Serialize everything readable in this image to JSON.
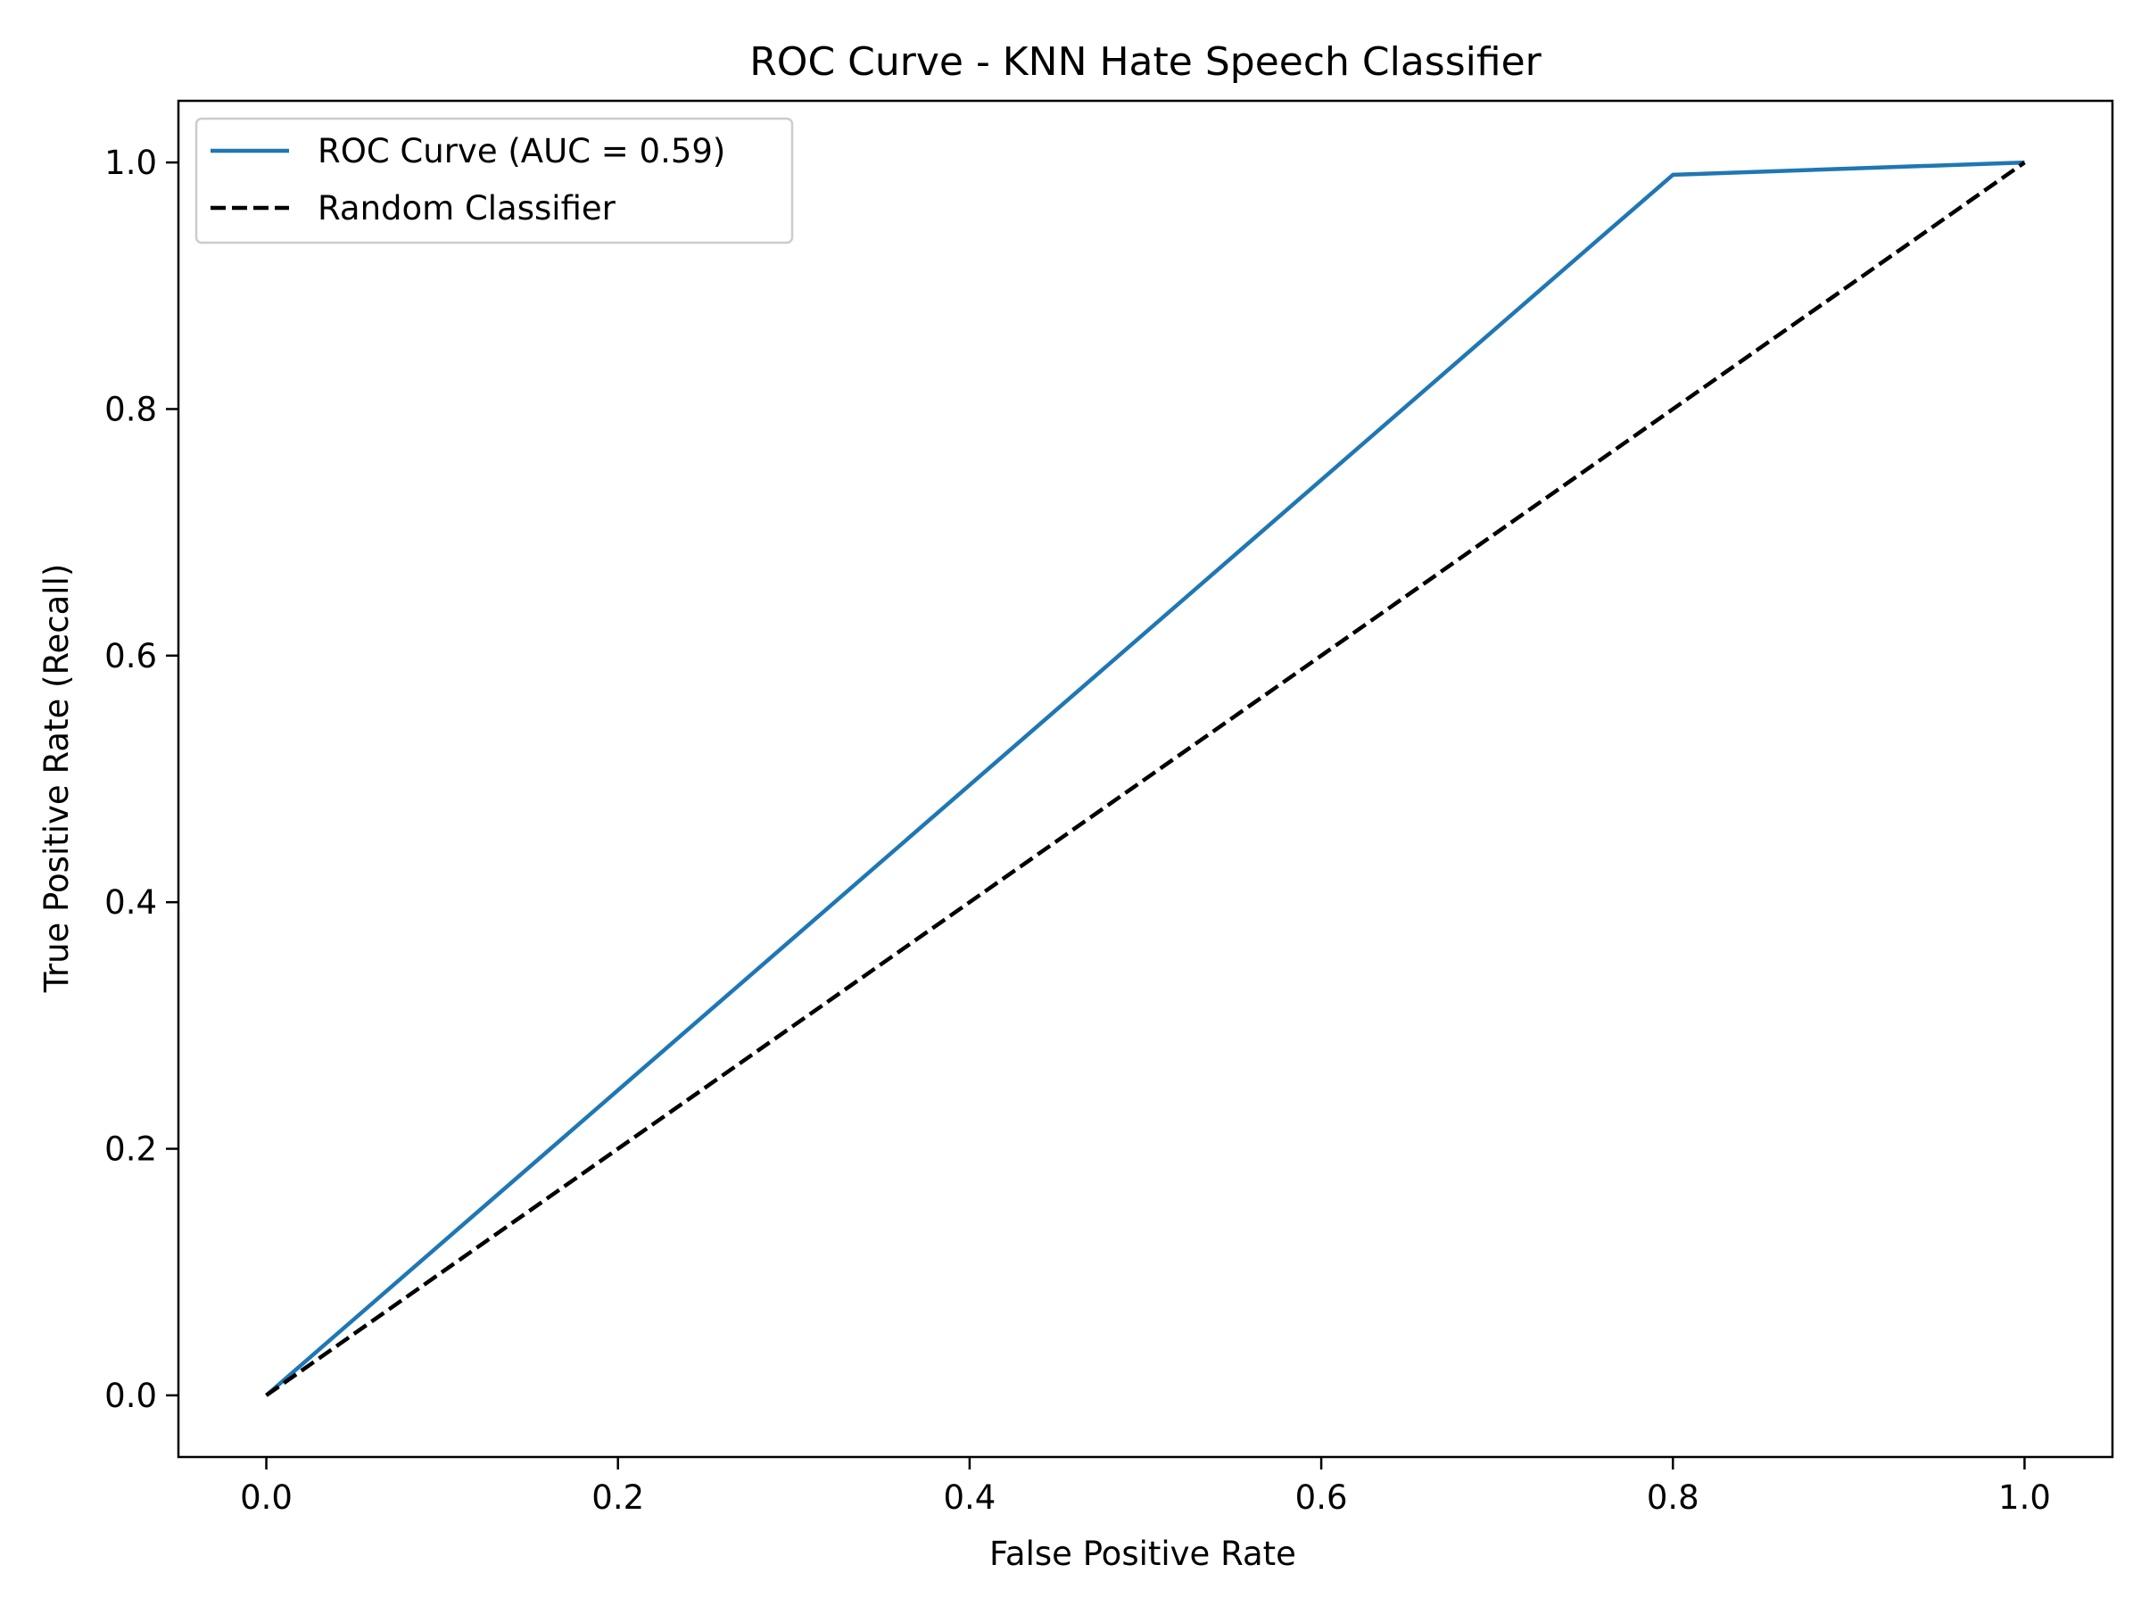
{
  "chart_data": {
    "type": "line",
    "title": "ROC Curve - KNN Hate Speech Classifier",
    "xlabel": "False Positive Rate",
    "ylabel": "True Positive Rate (Recall)",
    "xlim": [
      -0.05,
      1.05
    ],
    "ylim": [
      -0.05,
      1.05
    ],
    "xticks": [
      0.0,
      0.2,
      0.4,
      0.6,
      0.8,
      1.0
    ],
    "yticks": [
      0.0,
      0.2,
      0.4,
      0.6,
      0.8,
      1.0
    ],
    "xtick_labels": [
      "0.0",
      "0.2",
      "0.4",
      "0.6",
      "0.8",
      "1.0"
    ],
    "ytick_labels": [
      "0.0",
      "0.2",
      "0.4",
      "0.6",
      "0.8",
      "1.0"
    ],
    "grid": false,
    "legend_position": "upper-left",
    "series": [
      {
        "name": "ROC Curve (AUC = 0.59)",
        "color": "#1f77b4",
        "style": "solid",
        "x": [
          0.0,
          0.8,
          1.0
        ],
        "y": [
          0.0,
          0.99,
          1.0
        ]
      },
      {
        "name": "Random Classifier",
        "color": "#000000",
        "style": "dashed",
        "x": [
          0.0,
          1.0
        ],
        "y": [
          0.0,
          1.0
        ]
      }
    ]
  }
}
